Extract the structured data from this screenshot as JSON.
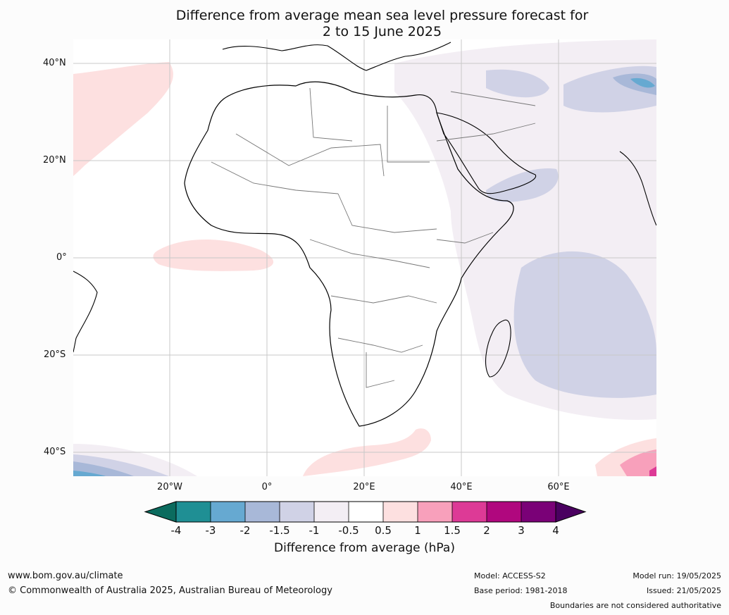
{
  "title_line1": "Difference from average mean sea level pressure forecast for",
  "title_line2": "2 to 15 June 2025",
  "lat_labels": [
    "40°N",
    "20°N",
    "0°",
    "20°S",
    "40°S"
  ],
  "lon_labels": [
    "20°W",
    "0°",
    "20°E",
    "40°E",
    "60°E"
  ],
  "colorbar": {
    "ticks": [
      "-4",
      "-3",
      "-2",
      "-1.5",
      "-1",
      "-0.5",
      "0.5",
      "1",
      "1.5",
      "2",
      "3",
      "4"
    ],
    "colors": [
      "#1f8f94",
      "#66a9d1",
      "#a8b8d8",
      "#d0d2e6",
      "#f3eef4",
      "#ffffff",
      "#fde0e0",
      "#f8a0bb",
      "#dd3a96",
      "#b0077e",
      "#7a0177"
    ],
    "under_color": "#0b6b5e",
    "over_color": "#4a0060",
    "label": "Difference from average (hPa)"
  },
  "footer": {
    "url": "www.bom.gov.au/climate",
    "copyright": "© Commonwealth of Australia 2025, Australian Bureau of Meteorology",
    "model": "Model: ACCESS-S2",
    "base_period": "Base period: 1981-2018",
    "model_run": "Model run: 19/05/2025",
    "issued": "Issued: 21/05/2025",
    "boundaries": "Boundaries are not considered authoritative"
  }
}
